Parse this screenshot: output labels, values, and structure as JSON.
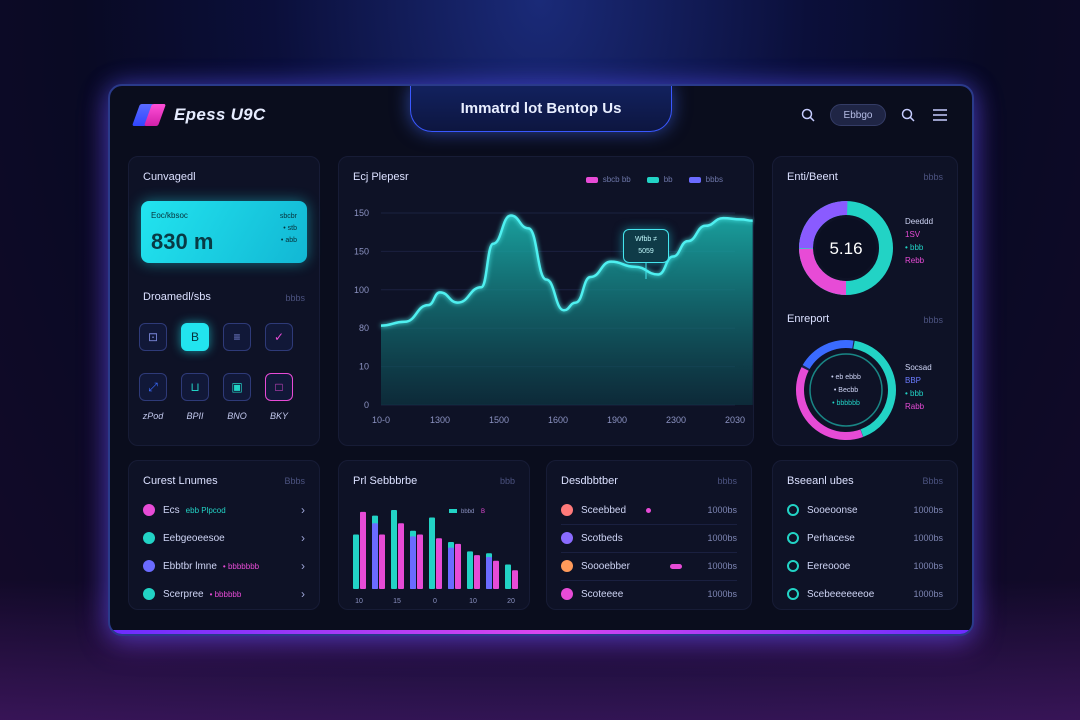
{
  "app": {
    "logo_text": "Epess U9C",
    "title": "Immatrd lot Bentop Us"
  },
  "topbar": {
    "pill_label": "Ebbgo"
  },
  "overview": {
    "title": "Cunvagedl",
    "kpi": {
      "label": "Eoc/kbsoc",
      "value": "830 m",
      "side_top": "sbcbr",
      "side_lines": [
        "• stb",
        "• abb"
      ]
    },
    "actions_title": "Droamedl/sbs",
    "actions_meta": "bbbs",
    "actions": [
      {
        "icon": "chart-icon",
        "glyph": "⊡",
        "label": ""
      },
      {
        "icon": "document-icon",
        "glyph": "B",
        "label": ""
      },
      {
        "icon": "list-icon",
        "glyph": "≡",
        "label": ""
      },
      {
        "icon": "check-icon",
        "glyph": "✓",
        "label": ""
      },
      {
        "icon": "expand-icon",
        "glyph": "⤢",
        "label": "zPod"
      },
      {
        "icon": "cart-icon",
        "glyph": "⊔",
        "label": "BPII"
      },
      {
        "icon": "image-icon",
        "glyph": "▣",
        "label": "BNO"
      },
      {
        "icon": "frame-icon",
        "glyph": "□",
        "label": "BKY"
      }
    ]
  },
  "growth": {
    "title": "Ecj Plepesr",
    "legend": [
      {
        "label": "sbcb bb",
        "color": "#e74bd6"
      },
      {
        "label": "bb",
        "color": "#22d3c5"
      },
      {
        "label": "bbbs",
        "color": "#6b6bff"
      }
    ],
    "tooltip": [
      "Wfbb ≠",
      "5059"
    ]
  },
  "chart_data": [
    {
      "type": "area",
      "title": "Ecj Plepesr",
      "x": [
        "10-0",
        "1300",
        "1500",
        "1600",
        "1900",
        "2300",
        "2030"
      ],
      "y_ticks": [
        "0",
        "10",
        "80",
        "100",
        "150",
        "150"
      ],
      "ylim": [
        0,
        150
      ],
      "series": [
        {
          "x": [
            0,
            0.4,
            0.8,
            1.0,
            1.3,
            1.7,
            1.9,
            2.2,
            2.5,
            2.8,
            3.1,
            3.3,
            3.55,
            3.9,
            4.3,
            4.7,
            4.95,
            5.2,
            5.5,
            5.8,
            6.1,
            6.3
          ],
          "y": [
            62,
            65,
            78,
            88,
            80,
            92,
            126,
            148,
            138,
            98,
            74,
            80,
            100,
            112,
            108,
            102,
            116,
            128,
            140,
            146,
            145,
            144
          ]
        }
      ]
    },
    {
      "type": "bar",
      "title": "Prl Sebbbrbe",
      "categories": [
        "10",
        "",
        "15",
        "",
        "0",
        "",
        "10",
        "",
        "20"
      ],
      "series": [
        {
          "name": "",
          "color": "#22d3c5",
          "values": [
            58,
            78,
            84,
            62,
            76,
            50,
            40,
            38,
            26
          ]
        },
        {
          "name": "",
          "color": "#e74bd6",
          "values": [
            82,
            58,
            70,
            58,
            54,
            48,
            36,
            30,
            20
          ]
        },
        {
          "name": "",
          "color": "#6b6bff",
          "values": [
            88,
            70,
            74,
            56,
            60,
            44,
            42,
            34,
            24
          ]
        }
      ],
      "legend": [
        "bbbd",
        "B"
      ]
    }
  ],
  "environment": {
    "title": "Enti/Beent",
    "meta": "bbbs",
    "center": "5.16",
    "side": [
      {
        "text": "Deeddd",
        "color": "#cfd5f5"
      },
      {
        "text": "1SV",
        "color": "#e74bd6"
      },
      {
        "text": "• bbb",
        "color": "#22d3c5"
      },
      {
        "text": "Rebb",
        "color": "#e74bd6"
      }
    ]
  },
  "engagement": {
    "title": "Enreport",
    "meta": "bbbs",
    "center_lines": [
      "• eb ebbb",
      "• Becbb",
      "• bbbbbb"
    ],
    "side": [
      {
        "text": "Socsad",
        "color": "#cfd5f5"
      },
      {
        "text": "BBP",
        "color": "#6b7bff"
      },
      {
        "text": "• bbb",
        "color": "#22d3c5"
      },
      {
        "text": "Rabb",
        "color": "#e74bd6"
      }
    ]
  },
  "current": {
    "title": "Curest Lnumes",
    "meta": "Bbbs",
    "rows": [
      {
        "label": "Ecs",
        "sub": "ebb Plpcod",
        "color": "#e74bd6"
      },
      {
        "label": "Eebgeoeesoe",
        "sub": "",
        "color": "#22d3c5"
      },
      {
        "label": "Ebbtbr lmne",
        "sub": "• bbbbbbb",
        "color": "#6b6bff"
      },
      {
        "label": "Scerpree",
        "sub": "• bbbbbb",
        "color": "#22d3c5"
      }
    ]
  },
  "prl": {
    "title": "Prl Sebbbrbe",
    "meta": "bbb"
  },
  "breakdown": {
    "title": "Desdbbtber",
    "meta": "bbbs",
    "rows": [
      {
        "label": "Sceebbed",
        "value": "1000bs",
        "color": "#ff7a7a",
        "tag": "#e74bd6"
      },
      {
        "label": "Scotbeds",
        "value": "1000bs",
        "color": "#8a6bff",
        "tag": ""
      },
      {
        "label": "Soooebber",
        "value": "1000bs",
        "color": "#ff9a5a",
        "tag": "#e74bd6"
      },
      {
        "label": "Scoteeee",
        "value": "1000bs",
        "color": "#e74bd6",
        "tag": ""
      }
    ]
  },
  "recent": {
    "title": "Bseeanl ubes",
    "meta": "Bbbs",
    "rows": [
      {
        "label": "Sooeoonse",
        "value": "1000bs"
      },
      {
        "label": "Perhacese",
        "value": "1000bs"
      },
      {
        "label": "Eereoooe",
        "value": "1000bs"
      },
      {
        "label": "Scebeeeeeeoe",
        "value": "1000bs"
      }
    ]
  },
  "colors": {
    "accent": "#22e4ef",
    "magenta": "#e74bd6",
    "violet": "#6b6bff",
    "frame": "#2a3a8a"
  }
}
